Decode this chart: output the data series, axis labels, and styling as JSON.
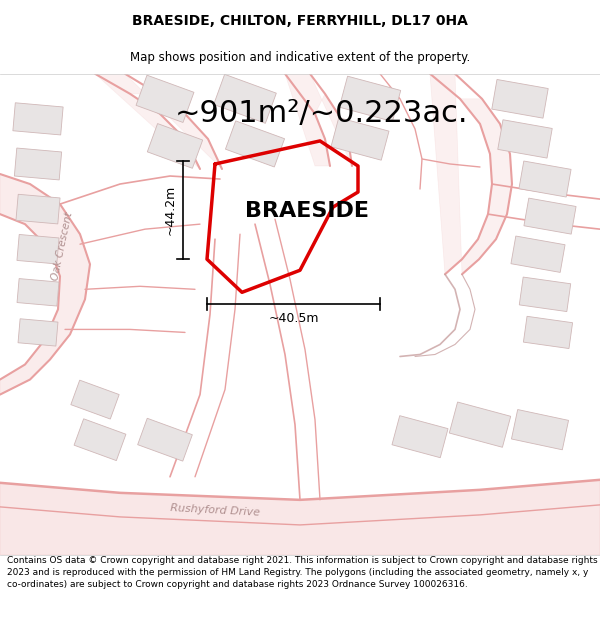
{
  "title": "BRAESIDE, CHILTON, FERRYHILL, DL17 0HA",
  "subtitle": "Map shows position and indicative extent of the property.",
  "area_text": "~901m²/~0.223ac.",
  "property_name": "BRAESIDE",
  "dim_vertical": "~44.2m",
  "dim_horizontal": "~40.5m",
  "footer": "Contains OS data © Crown copyright and database right 2021. This information is subject to Crown copyright and database rights 2023 and is reproduced with the permission of HM Land Registry. The polygons (including the associated geometry, namely x, y co-ordinates) are subject to Crown copyright and database rights 2023 Ordnance Survey 100026316.",
  "road_color": "#e8a0a0",
  "road_label_color": "#b09090",
  "building_fc": "#e8e4e4",
  "building_ec": "#d0b8b8",
  "property_color": "#dd0000",
  "map_bg": "#f8f5f5",
  "title_fontsize": 10,
  "subtitle_fontsize": 8.5,
  "area_fontsize": 22,
  "property_fontsize": 16,
  "dim_fontsize": 9,
  "footer_fontsize": 6.5,
  "fig_width": 6.0,
  "fig_height": 6.25,
  "dpi": 100
}
